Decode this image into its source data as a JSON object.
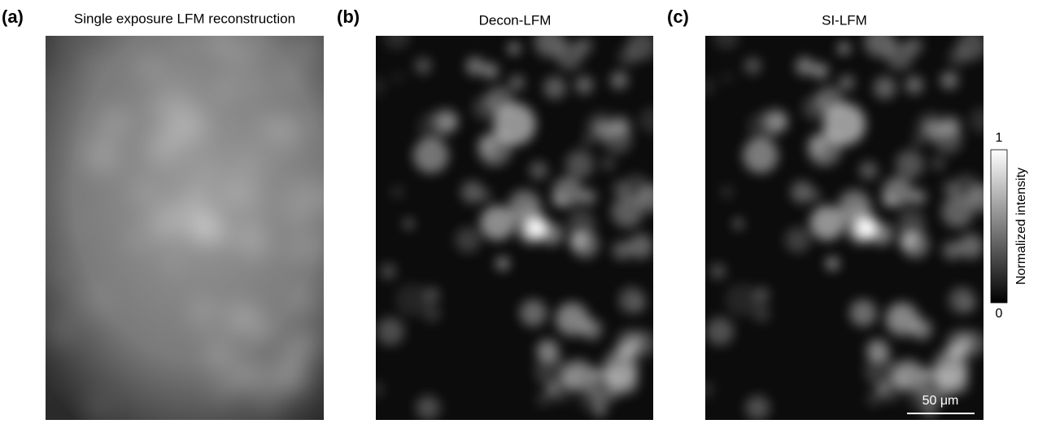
{
  "panels": [
    {
      "label": "(a)",
      "title": "Single exposure LFM reconstruction"
    },
    {
      "label": "(b)",
      "title": "Decon-LFM"
    },
    {
      "label": "(c)",
      "title": "SI-LFM"
    }
  ],
  "colorbar": {
    "label": "Normalized intensity",
    "max": 1,
    "min": 0
  },
  "scale_bar": "50 μm"
}
